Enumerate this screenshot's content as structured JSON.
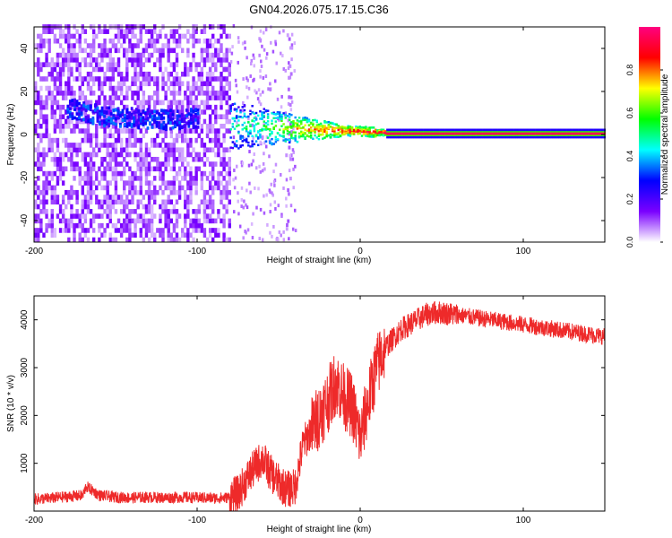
{
  "title": "GN04.2026.075.17.15.C36",
  "chart_data": [
    {
      "type": "heatmap",
      "xlabel": "Height of straight line (km)",
      "ylabel": "Frequency (Hz)",
      "xlim": [
        -200,
        150
      ],
      "ylim": [
        -50,
        50
      ],
      "xticks": [
        -200,
        -100,
        0,
        100
      ],
      "yticks": [
        -40,
        -20,
        0,
        20,
        40
      ],
      "colorbar": {
        "label": "Normalized spectral amplitude",
        "range": [
          0,
          1
        ],
        "ticks": [
          "0.0",
          "0.2",
          "0.4",
          "0.6",
          "0.8"
        ],
        "colormap": [
          "#ffffff",
          "#7a00ff",
          "#0000ff",
          "#00ffff",
          "#00ff00",
          "#ffff00",
          "#ff0000",
          "#ff0080"
        ]
      },
      "features": [
        {
          "name": "noise",
          "x_range": [
            -200,
            -80
          ],
          "f_range": [
            -50,
            50
          ],
          "amplitude": 0.12
        },
        {
          "name": "band",
          "x": [
            -175,
            -160,
            -140,
            -120,
            -105
          ],
          "f": [
            11,
            8,
            7,
            6,
            7
          ],
          "amplitude": 0.2
        },
        {
          "name": "main-line",
          "x": [
            -80,
            -60,
            -45,
            -30,
            -15,
            0,
            10,
            150
          ],
          "f": [
            4,
            3,
            2.5,
            2,
            1.5,
            1,
            0.5,
            0.5
          ],
          "amplitude": [
            0.45,
            0.55,
            0.7,
            0.8,
            0.85,
            0.9,
            0.95,
            0.95
          ]
        }
      ],
      "grid": false
    },
    {
      "type": "line",
      "xlabel": "Height of straight line (km)",
      "ylabel": "SNR (10 * v/v)",
      "xlim": [
        -200,
        150
      ],
      "ylim": [
        0,
        4500
      ],
      "xticks": [
        -200,
        -100,
        0,
        100
      ],
      "yticks": [
        1000,
        2000,
        3000,
        4000
      ],
      "line_color": "#ee2a2a",
      "series": [
        {
          "x": [
            -200,
            -190,
            -180,
            -170,
            -168,
            -160,
            -150,
            -140,
            -130,
            -120,
            -110,
            -100,
            -90,
            -82,
            -75,
            -70,
            -65,
            -60,
            -55,
            -50,
            -45,
            -40,
            -35,
            -30,
            -25,
            -20,
            -15,
            -10,
            -5,
            0,
            5,
            10,
            15,
            20,
            25,
            30,
            35,
            40,
            45,
            50,
            60,
            70,
            80,
            90,
            100,
            110,
            120,
            130,
            140,
            150
          ],
          "y": [
            250,
            270,
            300,
            330,
            520,
            330,
            290,
            280,
            290,
            280,
            290,
            280,
            270,
            280,
            350,
            650,
            900,
            1100,
            800,
            600,
            450,
            500,
            1400,
            1700,
            2000,
            2300,
            2700,
            2400,
            2200,
            1500,
            2300,
            3000,
            3400,
            3600,
            3800,
            3900,
            4000,
            4100,
            4150,
            4150,
            4100,
            4050,
            4000,
            3950,
            3900,
            3850,
            3800,
            3750,
            3700,
            3650
          ]
        }
      ],
      "grid": false
    }
  ]
}
